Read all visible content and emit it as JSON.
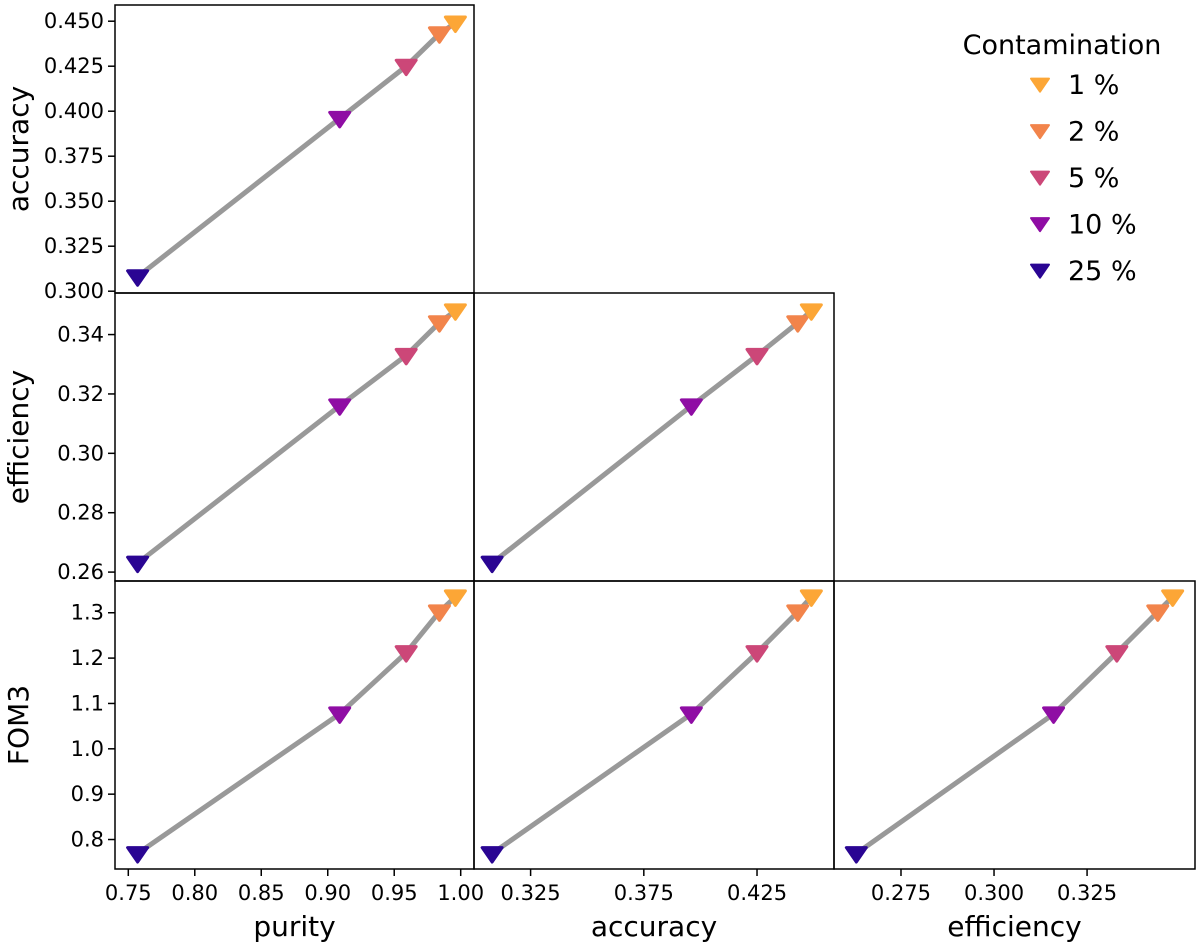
{
  "chart_data": {
    "type": "scatter",
    "layout": "corner-plot",
    "variables": [
      "purity",
      "accuracy",
      "efficiency",
      "FOM3"
    ],
    "legend": {
      "title": "Contamination",
      "placement": "top-right",
      "entries": [
        "1 %",
        "2 %",
        "5 %",
        "10 %",
        "25 %"
      ]
    },
    "series": [
      {
        "name": "1 %",
        "color": "#fca636",
        "marker": "triangle-down",
        "purity": 0.996,
        "accuracy": 0.449,
        "efficiency": 0.348,
        "FOM3": 1.335
      },
      {
        "name": "2 %",
        "color": "#f2844b",
        "marker": "triangle-down",
        "purity": 0.984,
        "accuracy": 0.443,
        "efficiency": 0.344,
        "FOM3": 1.302
      },
      {
        "name": "5 %",
        "color": "#cc4778",
        "marker": "triangle-down",
        "purity": 0.959,
        "accuracy": 0.425,
        "efficiency": 0.333,
        "FOM3": 1.212
      },
      {
        "name": "10 %",
        "color": "#8f0da4",
        "marker": "triangle-down",
        "purity": 0.909,
        "accuracy": 0.396,
        "efficiency": 0.316,
        "FOM3": 1.077
      },
      {
        "name": "25 %",
        "color": "#2a0593",
        "marker": "triangle-down",
        "purity": 0.757,
        "accuracy": 0.308,
        "efficiency": 0.263,
        "FOM3": 0.769
      }
    ],
    "panels": [
      {
        "x": "purity",
        "y": "accuracy",
        "xlim": [
          0.74,
          1.01
        ],
        "ylim": [
          0.299,
          0.459
        ],
        "show_xticks": false,
        "show_yticks": true,
        "ylabel": "accuracy",
        "yticks": [
          0.3,
          0.325,
          0.35,
          0.375,
          0.4,
          0.425,
          0.45
        ],
        "ytick_labels": [
          "0.300",
          "0.325",
          "0.350",
          "0.375",
          "0.400",
          "0.425",
          "0.450"
        ]
      },
      {
        "x": "purity",
        "y": "efficiency",
        "xlim": [
          0.74,
          1.01
        ],
        "ylim": [
          0.257,
          0.354
        ],
        "show_xticks": false,
        "show_yticks": true,
        "ylabel": "efficiency",
        "yticks": [
          0.26,
          0.28,
          0.3,
          0.32,
          0.34
        ],
        "ytick_labels": [
          "0.26",
          "0.28",
          "0.30",
          "0.32",
          "0.34"
        ]
      },
      {
        "x": "accuracy",
        "y": "efficiency",
        "xlim": [
          0.3,
          0.459
        ],
        "ylim": [
          0.257,
          0.354
        ],
        "show_xticks": false,
        "show_yticks": false
      },
      {
        "x": "purity",
        "y": "FOM3",
        "xlim": [
          0.74,
          1.01
        ],
        "ylim": [
          0.735,
          1.37
        ],
        "show_xticks": true,
        "show_yticks": true,
        "ylabel": "FOM3",
        "xlabel": "purity",
        "yticks": [
          0.8,
          0.9,
          1.0,
          1.1,
          1.2,
          1.3
        ],
        "ytick_labels": [
          "0.8",
          "0.9",
          "1.0",
          "1.1",
          "1.2",
          "1.3"
        ],
        "xticks": [
          0.75,
          0.8,
          0.85,
          0.9,
          0.95,
          1.0
        ],
        "xtick_labels": [
          "0.75",
          "0.80",
          "0.85",
          "0.90",
          "0.95",
          "1.00"
        ]
      },
      {
        "x": "accuracy",
        "y": "FOM3",
        "xlim": [
          0.3,
          0.459
        ],
        "ylim": [
          0.735,
          1.37
        ],
        "show_xticks": true,
        "show_yticks": false,
        "xlabel": "accuracy",
        "xticks": [
          0.325,
          0.375,
          0.425
        ],
        "xtick_labels": [
          "0.325",
          "0.375",
          "0.425"
        ]
      },
      {
        "x": "efficiency",
        "y": "FOM3",
        "xlim": [
          0.257,
          0.354
        ],
        "ylim": [
          0.735,
          1.37
        ],
        "show_xticks": true,
        "show_yticks": false,
        "xlabel": "efficiency",
        "xticks": [
          0.275,
          0.3,
          0.325
        ],
        "xtick_labels": [
          "0.275",
          "0.300",
          "0.325"
        ]
      }
    ]
  }
}
